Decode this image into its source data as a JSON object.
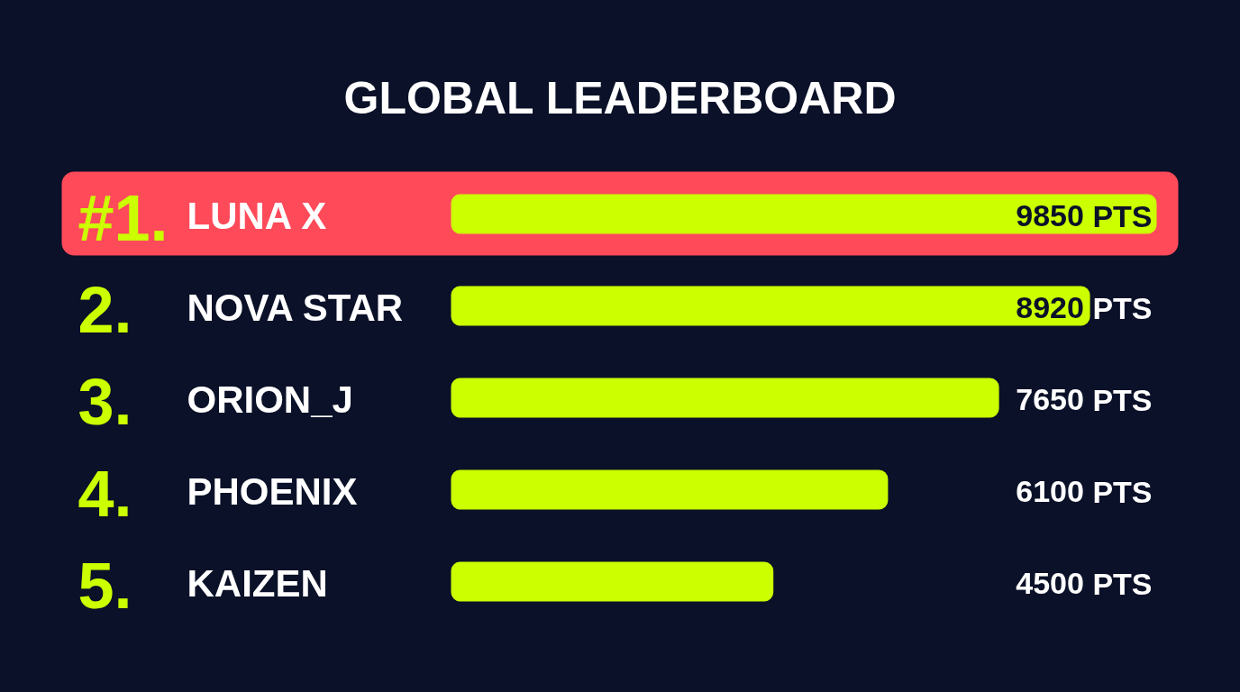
{
  "chart_data": {
    "type": "bar",
    "orientation": "horizontal",
    "title": "GLOBAL LEADERBOARD",
    "categories": [
      "LUNA X",
      "NOVA STAR",
      "ORION_J",
      "PHOENIX",
      "KAIZEN"
    ],
    "values": [
      9850,
      8920,
      7650,
      6100,
      4500
    ],
    "color": "#ccff00",
    "value_labels": [
      "9850 PTS",
      "8920 PTS",
      "7650 PTS",
      "6100 PTS",
      "4500 PTS"
    ],
    "annotations": [
      "#1.",
      "2.",
      "3.",
      "4.",
      "5."
    ],
    "bands": [
      {
        "axis": "y",
        "from": "LUNA X",
        "to": "LUNA X",
        "color": "#ff4a5a"
      }
    ]
  }
}
